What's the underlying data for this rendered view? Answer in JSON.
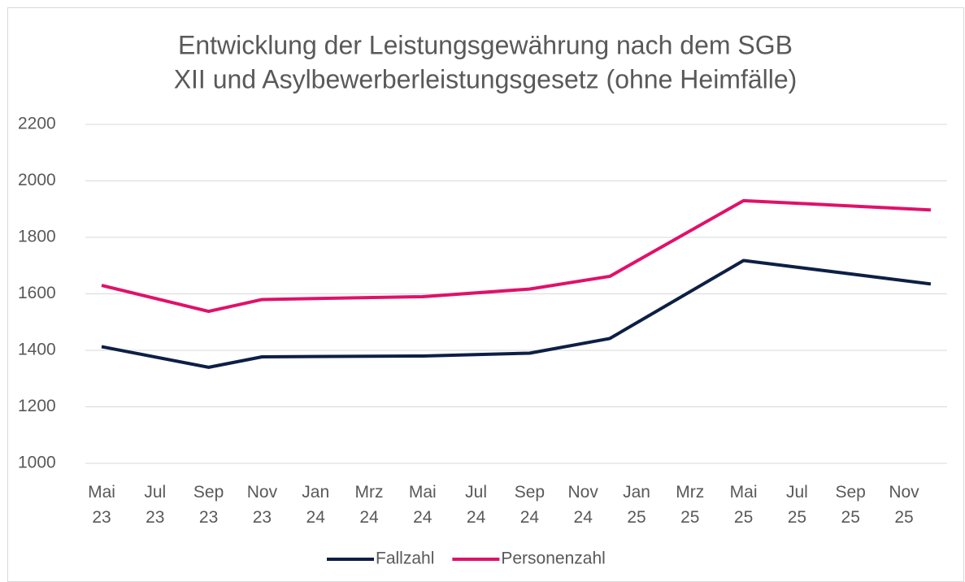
{
  "chart_data": {
    "type": "line",
    "title": [
      "Entwicklung der Leistungsgewährung nach dem SGB",
      "XII und Asylbewerberleistungsgesetz (ohne Heimfälle)"
    ],
    "x": [
      "2023-05",
      "2023-09",
      "2023-11",
      "2024-05",
      "2024-09",
      "2024-12",
      "2025-05",
      "2025-12"
    ],
    "series": [
      {
        "name": "Fallzahl",
        "color": "#0d1f45",
        "values": [
          1413,
          1340,
          1377,
          1380,
          1390,
          1442,
          1718,
          1635
        ]
      },
      {
        "name": "Personenzahl",
        "color": "#e0116a",
        "values": [
          1630,
          1538,
          1580,
          1590,
          1617,
          1662,
          1930,
          1897
        ]
      }
    ],
    "xticks": [
      {
        "value": "2023-05",
        "label": "Mai 23"
      },
      {
        "value": "2023-07",
        "label": "Jul 23"
      },
      {
        "value": "2023-09",
        "label": "Sep 23"
      },
      {
        "value": "2023-11",
        "label": "Nov 23"
      },
      {
        "value": "2024-01",
        "label": "Jan 24"
      },
      {
        "value": "2024-03",
        "label": "Mrz 24"
      },
      {
        "value": "2024-05",
        "label": "Mai 24"
      },
      {
        "value": "2024-07",
        "label": "Jul 24"
      },
      {
        "value": "2024-09",
        "label": "Sep 24"
      },
      {
        "value": "2024-11",
        "label": "Nov 24"
      },
      {
        "value": "2025-01",
        "label": "Jan 25"
      },
      {
        "value": "2025-03",
        "label": "Mrz 25"
      },
      {
        "value": "2025-05",
        "label": "Mai 25"
      },
      {
        "value": "2025-07",
        "label": "Jul 25"
      },
      {
        "value": "2025-09",
        "label": "Sep 25"
      },
      {
        "value": "2025-11",
        "label": "Nov 25"
      }
    ],
    "ylim": [
      1000,
      2200
    ],
    "yticks": [
      1000,
      1200,
      1400,
      1600,
      1800,
      2000,
      2200
    ],
    "grid": true,
    "legend": "bottom"
  }
}
